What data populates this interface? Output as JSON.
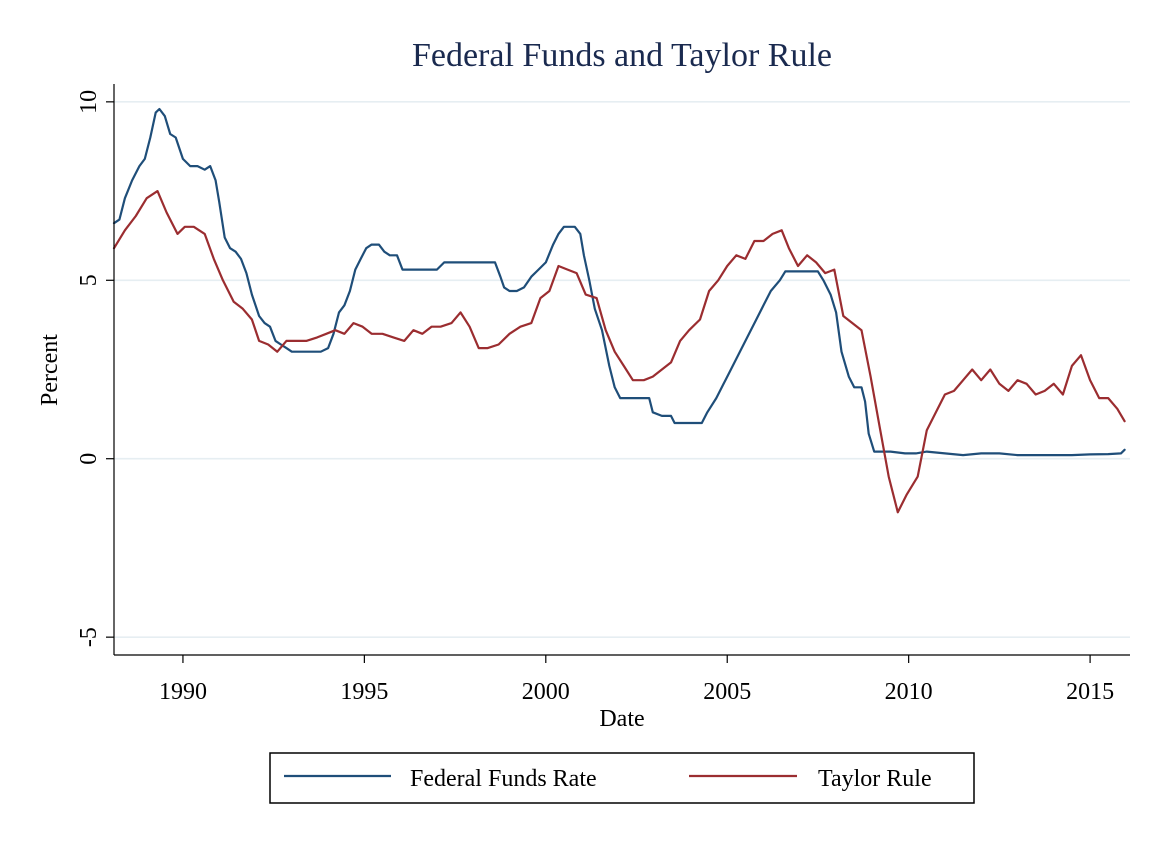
{
  "chart_data": {
    "type": "line",
    "title": "Federal Funds and Taylor Rule",
    "xlabel": "Date",
    "ylabel": "Percent",
    "xlim": [
      1988.1,
      2016.1
    ],
    "ylim": [
      -5.5,
      10.5
    ],
    "x_ticks": [
      1990,
      1995,
      2000,
      2005,
      2010,
      2015
    ],
    "y_ticks": [
      -5,
      0,
      5,
      10
    ],
    "grid": "horizontal",
    "legend": "bottom",
    "series": [
      {
        "name": "Federal Funds Rate",
        "color": "#1f4e79",
        "points": [
          [
            1988.1,
            6.6
          ],
          [
            1988.25,
            6.7
          ],
          [
            1988.4,
            7.3
          ],
          [
            1988.6,
            7.8
          ],
          [
            1988.8,
            8.2
          ],
          [
            1988.95,
            8.4
          ],
          [
            1989.1,
            9.0
          ],
          [
            1989.25,
            9.7
          ],
          [
            1989.35,
            9.8
          ],
          [
            1989.5,
            9.6
          ],
          [
            1989.65,
            9.1
          ],
          [
            1989.8,
            9.0
          ],
          [
            1990.0,
            8.4
          ],
          [
            1990.2,
            8.2
          ],
          [
            1990.4,
            8.2
          ],
          [
            1990.6,
            8.1
          ],
          [
            1990.75,
            8.2
          ],
          [
            1990.9,
            7.8
          ],
          [
            1991.0,
            7.2
          ],
          [
            1991.15,
            6.2
          ],
          [
            1991.3,
            5.9
          ],
          [
            1991.45,
            5.8
          ],
          [
            1991.6,
            5.6
          ],
          [
            1991.75,
            5.2
          ],
          [
            1991.9,
            4.6
          ],
          [
            1992.1,
            4.0
          ],
          [
            1992.25,
            3.8
          ],
          [
            1992.4,
            3.7
          ],
          [
            1992.55,
            3.3
          ],
          [
            1992.7,
            3.2
          ],
          [
            1992.85,
            3.1
          ],
          [
            1993.0,
            3.0
          ],
          [
            1993.2,
            3.0
          ],
          [
            1993.5,
            3.0
          ],
          [
            1993.8,
            3.0
          ],
          [
            1994.0,
            3.1
          ],
          [
            1994.15,
            3.5
          ],
          [
            1994.3,
            4.1
          ],
          [
            1994.45,
            4.3
          ],
          [
            1994.6,
            4.7
          ],
          [
            1994.75,
            5.3
          ],
          [
            1994.9,
            5.6
          ],
          [
            1995.05,
            5.9
          ],
          [
            1995.2,
            6.0
          ],
          [
            1995.4,
            6.0
          ],
          [
            1995.55,
            5.8
          ],
          [
            1995.7,
            5.7
          ],
          [
            1995.9,
            5.7
          ],
          [
            1996.05,
            5.3
          ],
          [
            1996.3,
            5.3
          ],
          [
            1996.5,
            5.3
          ],
          [
            1996.8,
            5.3
          ],
          [
            1997.0,
            5.3
          ],
          [
            1997.2,
            5.5
          ],
          [
            1997.5,
            5.5
          ],
          [
            1997.8,
            5.5
          ],
          [
            1998.0,
            5.5
          ],
          [
            1998.2,
            5.5
          ],
          [
            1998.45,
            5.5
          ],
          [
            1998.6,
            5.5
          ],
          [
            1998.75,
            5.1
          ],
          [
            1998.85,
            4.8
          ],
          [
            1999.0,
            4.7
          ],
          [
            1999.2,
            4.7
          ],
          [
            1999.4,
            4.8
          ],
          [
            1999.6,
            5.1
          ],
          [
            1999.8,
            5.3
          ],
          [
            2000.0,
            5.5
          ],
          [
            2000.2,
            6.0
          ],
          [
            2000.35,
            6.3
          ],
          [
            2000.5,
            6.5
          ],
          [
            2000.8,
            6.5
          ],
          [
            2000.95,
            6.3
          ],
          [
            2001.05,
            5.7
          ],
          [
            2001.2,
            5.0
          ],
          [
            2001.35,
            4.2
          ],
          [
            2001.55,
            3.6
          ],
          [
            2001.75,
            2.6
          ],
          [
            2001.9,
            2.0
          ],
          [
            2002.05,
            1.7
          ],
          [
            2002.3,
            1.7
          ],
          [
            2002.6,
            1.7
          ],
          [
            2002.85,
            1.7
          ],
          [
            2002.95,
            1.3
          ],
          [
            2003.2,
            1.2
          ],
          [
            2003.45,
            1.2
          ],
          [
            2003.55,
            1.0
          ],
          [
            2003.9,
            1.0
          ],
          [
            2004.3,
            1.0
          ],
          [
            2004.45,
            1.3
          ],
          [
            2004.7,
            1.7
          ],
          [
            2004.9,
            2.1
          ],
          [
            2005.1,
            2.5
          ],
          [
            2005.35,
            3.0
          ],
          [
            2005.55,
            3.4
          ],
          [
            2005.8,
            3.9
          ],
          [
            2006.0,
            4.3
          ],
          [
            2006.2,
            4.7
          ],
          [
            2006.45,
            5.0
          ],
          [
            2006.6,
            5.25
          ],
          [
            2007.0,
            5.25
          ],
          [
            2007.3,
            5.25
          ],
          [
            2007.5,
            5.25
          ],
          [
            2007.65,
            5.0
          ],
          [
            2007.85,
            4.6
          ],
          [
            2008.0,
            4.1
          ],
          [
            2008.15,
            3.0
          ],
          [
            2008.35,
            2.3
          ],
          [
            2008.5,
            2.0
          ],
          [
            2008.7,
            2.0
          ],
          [
            2008.8,
            1.6
          ],
          [
            2008.9,
            0.7
          ],
          [
            2009.05,
            0.2
          ],
          [
            2009.5,
            0.2
          ],
          [
            2009.9,
            0.15
          ],
          [
            2010.2,
            0.15
          ],
          [
            2010.5,
            0.2
          ],
          [
            2011.0,
            0.15
          ],
          [
            2011.5,
            0.1
          ],
          [
            2012.0,
            0.15
          ],
          [
            2012.5,
            0.15
          ],
          [
            2013.0,
            0.1
          ],
          [
            2013.5,
            0.1
          ],
          [
            2014.0,
            0.1
          ],
          [
            2014.5,
            0.1
          ],
          [
            2015.0,
            0.12
          ],
          [
            2015.5,
            0.13
          ],
          [
            2015.85,
            0.15
          ],
          [
            2015.95,
            0.25
          ]
        ]
      },
      {
        "name": "Taylor Rule",
        "color": "#9b2d30",
        "points": [
          [
            1988.1,
            5.9
          ],
          [
            1988.4,
            6.4
          ],
          [
            1988.7,
            6.8
          ],
          [
            1989.0,
            7.3
          ],
          [
            1989.3,
            7.5
          ],
          [
            1989.55,
            6.9
          ],
          [
            1989.85,
            6.3
          ],
          [
            1990.05,
            6.5
          ],
          [
            1990.3,
            6.5
          ],
          [
            1990.6,
            6.3
          ],
          [
            1990.85,
            5.6
          ],
          [
            1991.1,
            5.0
          ],
          [
            1991.4,
            4.4
          ],
          [
            1991.65,
            4.2
          ],
          [
            1991.9,
            3.9
          ],
          [
            1992.1,
            3.3
          ],
          [
            1992.35,
            3.2
          ],
          [
            1992.6,
            3.0
          ],
          [
            1992.85,
            3.3
          ],
          [
            1993.1,
            3.3
          ],
          [
            1993.4,
            3.3
          ],
          [
            1993.7,
            3.4
          ],
          [
            1993.95,
            3.5
          ],
          [
            1994.2,
            3.6
          ],
          [
            1994.45,
            3.5
          ],
          [
            1994.7,
            3.8
          ],
          [
            1994.95,
            3.7
          ],
          [
            1995.2,
            3.5
          ],
          [
            1995.5,
            3.5
          ],
          [
            1995.8,
            3.4
          ],
          [
            1996.1,
            3.3
          ],
          [
            1996.35,
            3.6
          ],
          [
            1996.6,
            3.5
          ],
          [
            1996.85,
            3.7
          ],
          [
            1997.1,
            3.7
          ],
          [
            1997.4,
            3.8
          ],
          [
            1997.65,
            4.1
          ],
          [
            1997.9,
            3.7
          ],
          [
            1998.15,
            3.1
          ],
          [
            1998.4,
            3.1
          ],
          [
            1998.7,
            3.2
          ],
          [
            1999.0,
            3.5
          ],
          [
            1999.3,
            3.7
          ],
          [
            1999.6,
            3.8
          ],
          [
            1999.85,
            4.5
          ],
          [
            2000.1,
            4.7
          ],
          [
            2000.35,
            5.4
          ],
          [
            2000.6,
            5.3
          ],
          [
            2000.85,
            5.2
          ],
          [
            2001.1,
            4.6
          ],
          [
            2001.4,
            4.5
          ],
          [
            2001.65,
            3.6
          ],
          [
            2001.9,
            3.0
          ],
          [
            2002.15,
            2.6
          ],
          [
            2002.4,
            2.2
          ],
          [
            2002.7,
            2.2
          ],
          [
            2002.95,
            2.3
          ],
          [
            2003.2,
            2.5
          ],
          [
            2003.45,
            2.7
          ],
          [
            2003.7,
            3.3
          ],
          [
            2003.95,
            3.6
          ],
          [
            2004.25,
            3.9
          ],
          [
            2004.5,
            4.7
          ],
          [
            2004.75,
            5.0
          ],
          [
            2005.0,
            5.4
          ],
          [
            2005.25,
            5.7
          ],
          [
            2005.5,
            5.6
          ],
          [
            2005.75,
            6.1
          ],
          [
            2006.0,
            6.1
          ],
          [
            2006.25,
            6.3
          ],
          [
            2006.5,
            6.4
          ],
          [
            2006.7,
            5.9
          ],
          [
            2006.95,
            5.4
          ],
          [
            2007.2,
            5.7
          ],
          [
            2007.45,
            5.5
          ],
          [
            2007.7,
            5.2
          ],
          [
            2007.95,
            5.3
          ],
          [
            2008.2,
            4.0
          ],
          [
            2008.45,
            3.8
          ],
          [
            2008.7,
            3.6
          ],
          [
            2008.95,
            2.3
          ],
          [
            2009.2,
            0.9
          ],
          [
            2009.45,
            -0.5
          ],
          [
            2009.7,
            -1.5
          ],
          [
            2009.95,
            -1.0
          ],
          [
            2010.25,
            -0.5
          ],
          [
            2010.5,
            0.8
          ],
          [
            2010.75,
            1.3
          ],
          [
            2011.0,
            1.8
          ],
          [
            2011.25,
            1.9
          ],
          [
            2011.5,
            2.2
          ],
          [
            2011.75,
            2.5
          ],
          [
            2012.0,
            2.2
          ],
          [
            2012.25,
            2.5
          ],
          [
            2012.5,
            2.1
          ],
          [
            2012.75,
            1.9
          ],
          [
            2013.0,
            2.2
          ],
          [
            2013.25,
            2.1
          ],
          [
            2013.5,
            1.8
          ],
          [
            2013.75,
            1.9
          ],
          [
            2014.0,
            2.1
          ],
          [
            2014.25,
            1.8
          ],
          [
            2014.5,
            2.6
          ],
          [
            2014.75,
            2.9
          ],
          [
            2015.0,
            2.2
          ],
          [
            2015.25,
            1.7
          ],
          [
            2015.5,
            1.7
          ],
          [
            2015.75,
            1.4
          ],
          [
            2015.95,
            1.05
          ]
        ]
      }
    ]
  }
}
